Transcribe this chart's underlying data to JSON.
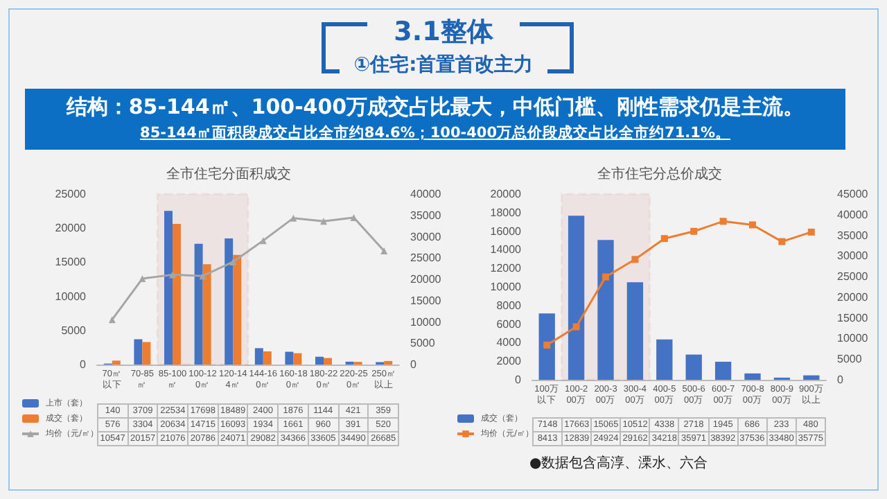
{
  "chart_data": [
    {
      "type": "other",
      "title": "3.1整体",
      "subtitle": "①住宅:首置首改主力",
      "annotations": [
        "结构：85-144㎡、100-400万成交占比最大，中低门槛、刚性需求仍是主流。",
        "85-144㎡面积段成交占比全市约84.6%；100-400万总价段成交占比全市约71.1%。"
      ]
    },
    {
      "type": "bar",
      "title": "全市住宅分面积成交",
      "categories": [
        "70㎡以下",
        "70-85㎡",
        "85-100㎡",
        "100-120㎡",
        "120-144㎡",
        "144-160㎡",
        "160-180㎡",
        "180-220㎡",
        "220-250㎡",
        "250㎡以上"
      ],
      "series": [
        {
          "name": "上市（套）",
          "color": "#4472c4",
          "values": [
            140,
            3709,
            22534,
            17698,
            18489,
            2400,
            1876,
            1144,
            421,
            359
          ]
        },
        {
          "name": "成交（套）",
          "color": "#ed7d31",
          "values": [
            576,
            3304,
            20634,
            14715,
            16093,
            1934,
            1661,
            960,
            391,
            520
          ]
        },
        {
          "name": "均价（元/㎡）",
          "type": "line",
          "axis": "y2",
          "color": "#a5a5a5",
          "values": [
            10547,
            20157,
            21076,
            20786,
            24071,
            29082,
            34366,
            33605,
            34490,
            26685
          ]
        }
      ],
      "ylim": [
        0,
        25000
      ],
      "yticks": [
        0,
        5000,
        10000,
        15000,
        20000,
        25000
      ],
      "y2lim": [
        0,
        40000
      ],
      "y2ticks": [
        0,
        5000,
        10000,
        15000,
        20000,
        25000,
        30000,
        35000,
        40000
      ],
      "bands": [
        {
          "axis": "x",
          "from": "85-100㎡",
          "to": "120-144㎡",
          "color": "#c00000"
        }
      ],
      "data_labels": true,
      "legend": "bottom left",
      "marker": "triangle",
      "grid": false
    },
    {
      "type": "bar",
      "title": "全市住宅分总价成交",
      "categories": [
        "100万以下",
        "100-200万",
        "200-300万",
        "300-400万",
        "400-500万",
        "500-600万",
        "600-700万",
        "700-800万",
        "800-900万",
        "900万以上"
      ],
      "series": [
        {
          "name": "成交（套）",
          "color": "#4472c4",
          "values": [
            7148,
            17663,
            15065,
            10512,
            4338,
            2718,
            1945,
            686,
            233,
            480
          ]
        },
        {
          "name": "均价（元/㎡）",
          "type": "line",
          "axis": "y2",
          "color": "#ed7d31",
          "values": [
            8413,
            12839,
            24924,
            29162,
            34218,
            35971,
            38392,
            37536,
            33480,
            35775
          ]
        }
      ],
      "ylim": [
        0,
        20000
      ],
      "yticks": [
        0,
        2000,
        4000,
        6000,
        8000,
        10000,
        12000,
        14000,
        16000,
        18000,
        20000
      ],
      "y2lim": [
        0,
        45000
      ],
      "y2ticks": [
        0,
        5000,
        10000,
        15000,
        20000,
        25000,
        30000,
        35000,
        40000,
        45000
      ],
      "bands": [
        {
          "axis": "x",
          "from": "100-200万",
          "to": "300-400万",
          "color": "#c00000"
        }
      ],
      "data_labels": true,
      "legend": "bottom left",
      "marker": "square",
      "grid": false,
      "annotations": [
        "●数据包含高淳、溧水、六合"
      ]
    }
  ]
}
